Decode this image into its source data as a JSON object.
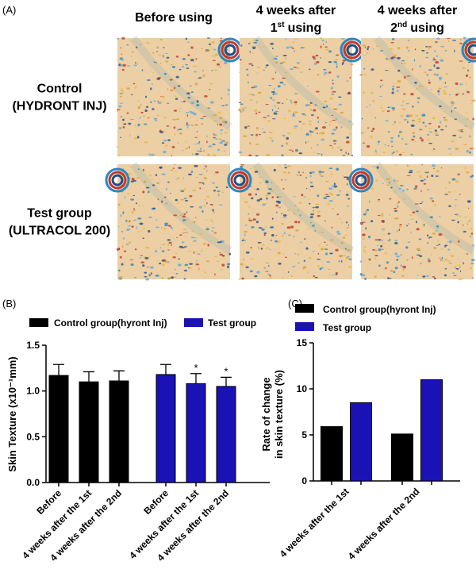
{
  "panel_a": {
    "label": "(A)",
    "columns": [
      {
        "line1": "Before using"
      },
      {
        "line1": "4 weeks after",
        "num": "1",
        "sup": "st",
        "rest": "using"
      },
      {
        "line1": "4 weeks after",
        "num": "2",
        "sup": "nd",
        "rest": "using"
      }
    ],
    "rows": [
      {
        "line1": "Control",
        "line2": "(HYDRONT INJ)"
      },
      {
        "line1": "Test group",
        "line2": "(ULTRACOL 200)"
      }
    ]
  },
  "chart_data": [
    {
      "type": "bar",
      "panel_label": "(B)",
      "y_label": "Skin Texture (x10⁻¹mm)",
      "categories": [
        "Before",
        "4 weeks after the 1st",
        "4 weeks after the 2nd"
      ],
      "series": [
        {
          "name": "Control group(hyront Inj)",
          "color": "#000000",
          "values": [
            1.17,
            1.1,
            1.11
          ],
          "errors": [
            0.12,
            0.11,
            0.11
          ]
        },
        {
          "name": "Test group",
          "color": "#1a12b4",
          "values": [
            1.18,
            1.08,
            1.05
          ],
          "errors": [
            0.11,
            0.11,
            0.1
          ],
          "significance": [
            null,
            "*",
            "*"
          ]
        }
      ],
      "ylim": [
        0,
        1.5
      ],
      "yticks": [
        {
          "value": 0,
          "label": "0.0"
        },
        {
          "value": 0.5,
          "label": "0.5"
        },
        {
          "value": 1,
          "label": "1.0"
        },
        {
          "value": 1.5,
          "label": "1.5"
        }
      ]
    },
    {
      "type": "bar",
      "panel_label": "(C)",
      "y_label": [
        "Rate of change",
        "in skin texture (%)"
      ],
      "categories": [
        "4 weeks after the 1st",
        "4 weeks after the 2nd"
      ],
      "series": [
        {
          "name": "Control group(hyront Inj)",
          "color": "#000000",
          "values": [
            5.9,
            5.1
          ]
        },
        {
          "name": "Test group",
          "color": "#1a12b4",
          "values": [
            8.5,
            11.0
          ]
        }
      ],
      "ylim": [
        0,
        15
      ],
      "yticks": [
        0,
        5,
        10,
        15
      ]
    }
  ]
}
